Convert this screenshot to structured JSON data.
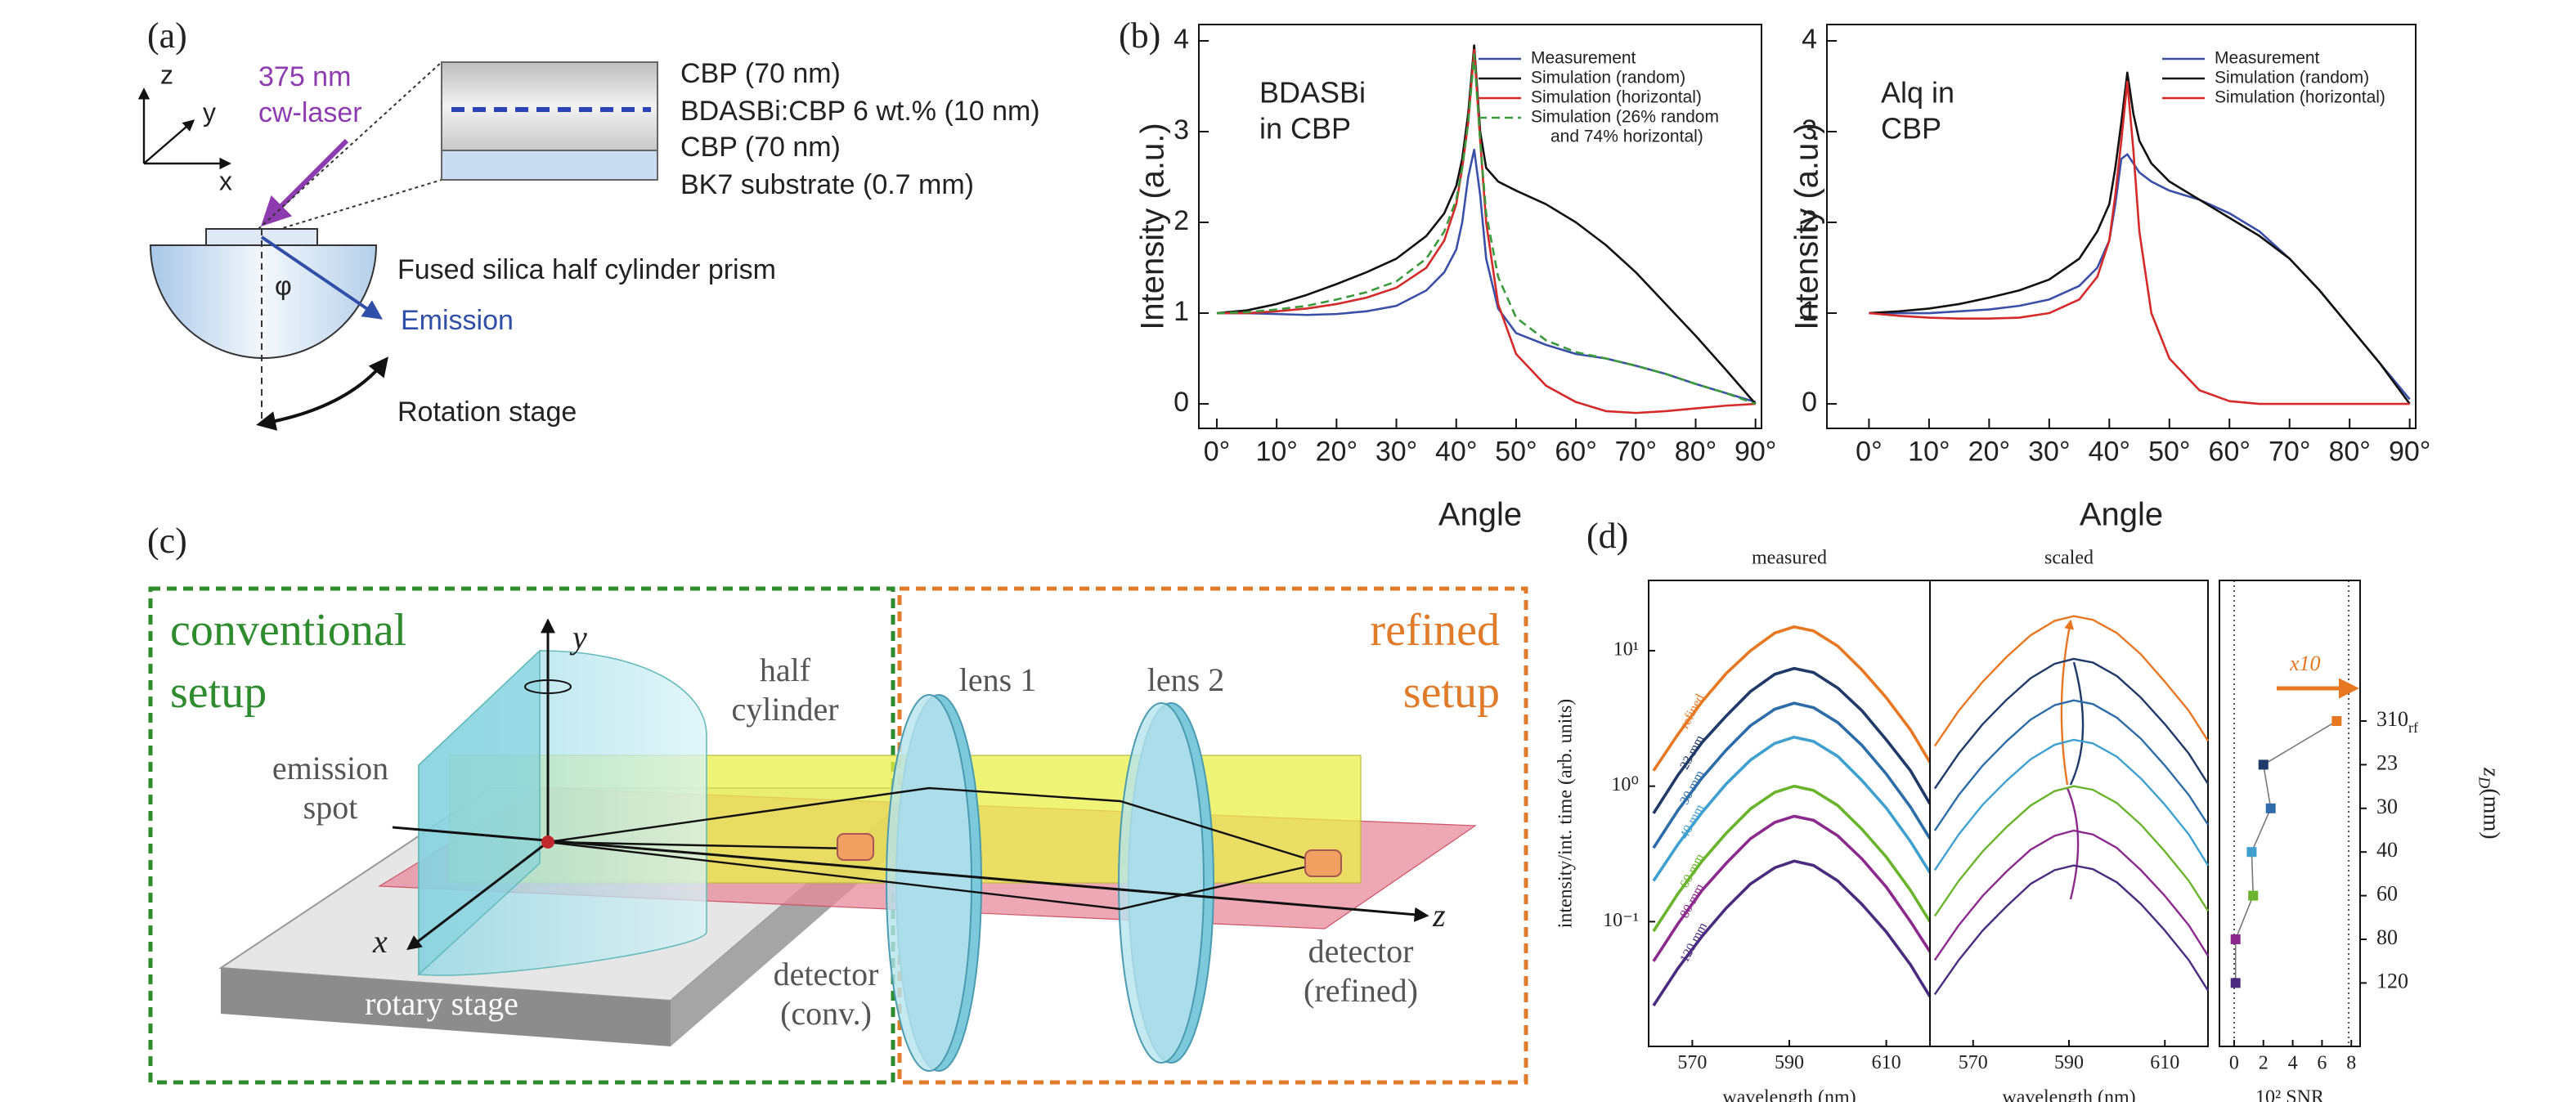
{
  "panel_labels": [
    "(a)",
    "(b)",
    "(c)",
    "(d)"
  ],
  "panel_a": {
    "axes": [
      "z",
      "y",
      "x"
    ],
    "laser": [
      "375 nm",
      "cw-laser"
    ],
    "layers": [
      "CBP (70 nm)",
      "BDASBi:CBP 6 wt.% (10 nm)",
      "CBP (70 nm)",
      "BK7 substrate (0.7 mm)"
    ],
    "prism": "Fused silica half cylinder prism",
    "angle": "φ",
    "emission": "Emission",
    "stage": "Rotation stage"
  },
  "panel_c": {
    "conventional": [
      "conventional",
      "setup"
    ],
    "refined": [
      "refined",
      "setup"
    ],
    "y_axis": "y",
    "x_axis": "x",
    "z_axis": "z",
    "half_cylinder": [
      "half",
      "cylinder"
    ],
    "lens_1": "lens 1",
    "lens_2": "lens 2",
    "emission_spot": [
      "emission",
      "spot"
    ],
    "rotary_stage": "rotary stage",
    "detector_conv": [
      "detector",
      "(conv.)"
    ],
    "detector_refined": [
      "detector",
      "(refined)"
    ]
  },
  "chart_data": [
    {
      "type": "line",
      "annotation": [
        "BDASBi",
        "in CBP"
      ],
      "xlabel": "Angle",
      "ylabel": "Intensity (a.u.)",
      "legend": "upper right",
      "x": [
        0,
        5,
        10,
        15,
        20,
        25,
        30,
        35,
        38,
        40,
        41,
        42,
        43,
        44,
        45,
        47,
        50,
        55,
        60,
        65,
        70,
        75,
        80,
        85,
        90
      ],
      "series": [
        {
          "name": "Measurement",
          "color": "#3a4fa8",
          "values": [
            1.0,
            1.0,
            0.99,
            0.98,
            0.99,
            1.02,
            1.08,
            1.25,
            1.45,
            1.7,
            2.0,
            2.5,
            2.8,
            2.3,
            1.6,
            1.05,
            0.78,
            0.65,
            0.55,
            0.5,
            0.42,
            0.33,
            0.22,
            0.12,
            0.02
          ]
        },
        {
          "name": "Simulation (random)",
          "color": "#111111",
          "values": [
            1.0,
            1.03,
            1.1,
            1.2,
            1.32,
            1.45,
            1.6,
            1.85,
            2.1,
            2.4,
            2.7,
            3.2,
            3.95,
            3.0,
            2.6,
            2.45,
            2.35,
            2.2,
            2.0,
            1.75,
            1.45,
            1.1,
            0.75,
            0.38,
            0.0
          ]
        },
        {
          "name": "Simulation (horizontal)",
          "color": "#d42a2a",
          "values": [
            1.0,
            1.0,
            1.02,
            1.05,
            1.1,
            1.17,
            1.28,
            1.5,
            1.8,
            2.2,
            2.6,
            3.1,
            3.9,
            2.9,
            2.0,
            1.1,
            0.55,
            0.2,
            0.02,
            -0.08,
            -0.1,
            -0.08,
            -0.05,
            -0.02,
            0.0
          ]
        },
        {
          "name": [
            "Simulation (26% random",
            "and 74% horizontal)"
          ],
          "color": "#3b9a3b",
          "dashed": true,
          "values": [
            1.0,
            1.01,
            1.04,
            1.08,
            1.15,
            1.23,
            1.35,
            1.6,
            1.9,
            2.25,
            2.6,
            3.1,
            3.85,
            2.9,
            2.1,
            1.4,
            0.95,
            0.7,
            0.57,
            0.5,
            0.42,
            0.33,
            0.22,
            0.12,
            0.0
          ]
        }
      ],
      "xlim": [
        -3,
        91
      ],
      "ylim": [
        -0.27,
        4.18
      ],
      "xticks": [
        {
          "value": 0,
          "label": "0°"
        },
        {
          "value": 10,
          "label": "10°"
        },
        {
          "value": 20,
          "label": "20°"
        },
        {
          "value": 30,
          "label": "30°"
        },
        {
          "value": 40,
          "label": "40°"
        },
        {
          "value": 50,
          "label": "50°"
        },
        {
          "value": 60,
          "label": "60°"
        },
        {
          "value": 70,
          "label": "70°"
        },
        {
          "value": 80,
          "label": "80°"
        },
        {
          "value": 90,
          "label": "90°"
        }
      ],
      "yticks": [
        0,
        1,
        2,
        3,
        4
      ]
    },
    {
      "type": "line",
      "annotation": [
        "Alq in",
        "CBP"
      ],
      "xlabel": "Angle",
      "ylabel": "Intensity (a.u.)",
      "legend": "upper right",
      "x": [
        0,
        5,
        10,
        15,
        20,
        25,
        30,
        35,
        38,
        40,
        41,
        42,
        43,
        44,
        45,
        47,
        50,
        55,
        60,
        65,
        70,
        75,
        80,
        85,
        90
      ],
      "series": [
        {
          "name": "Measurement",
          "color": "#3a4fa8",
          "values": [
            1.0,
            1.0,
            1.0,
            1.02,
            1.04,
            1.08,
            1.15,
            1.3,
            1.5,
            1.8,
            2.2,
            2.7,
            2.75,
            2.65,
            2.55,
            2.45,
            2.35,
            2.25,
            2.1,
            1.9,
            1.6,
            1.25,
            0.85,
            0.45,
            0.05
          ]
        },
        {
          "name": "Simulation (random)",
          "color": "#111111",
          "values": [
            1.0,
            1.02,
            1.05,
            1.1,
            1.17,
            1.25,
            1.37,
            1.6,
            1.9,
            2.2,
            2.6,
            3.1,
            3.65,
            3.2,
            2.9,
            2.65,
            2.45,
            2.25,
            2.05,
            1.85,
            1.6,
            1.25,
            0.85,
            0.45,
            0.0
          ]
        },
        {
          "name": "Simulation (horizontal)",
          "color": "#d42a2a",
          "values": [
            1.0,
            0.97,
            0.95,
            0.94,
            0.94,
            0.95,
            1.0,
            1.15,
            1.4,
            1.8,
            2.3,
            2.9,
            3.55,
            2.8,
            1.9,
            1.0,
            0.5,
            0.15,
            0.03,
            0.0,
            0.0,
            0.0,
            0.0,
            0.0,
            0.0
          ]
        }
      ],
      "xlim": [
        -7,
        91
      ],
      "ylim": [
        -0.27,
        4.18
      ],
      "xticks": [
        {
          "value": 0,
          "label": "0°"
        },
        {
          "value": 10,
          "label": "10°"
        },
        {
          "value": 20,
          "label": "20°"
        },
        {
          "value": 30,
          "label": "30°"
        },
        {
          "value": 40,
          "label": "40°"
        },
        {
          "value": 50,
          "label": "50°"
        },
        {
          "value": 60,
          "label": "60°"
        },
        {
          "value": 70,
          "label": "70°"
        },
        {
          "value": 80,
          "label": "80°"
        },
        {
          "value": 90,
          "label": "90°"
        }
      ],
      "yticks": [
        0,
        1,
        2,
        3,
        4
      ]
    },
    {
      "type": "line",
      "title": "measured",
      "xlabel": "wavelength (nm)",
      "ylabel": "intensity/int. time (arb. units)",
      "log": true,
      "legend": "inline",
      "x": [
        562,
        567,
        572,
        577,
        582,
        587,
        591,
        595,
        600,
        605,
        610,
        615,
        619
      ],
      "series": [
        {
          "name": "refined",
          "color": "#e87722",
          "values": [
            1.3,
            2.4,
            4.2,
            6.8,
            10,
            13.5,
            15,
            14,
            10.8,
            7.2,
            4.5,
            2.6,
            1.5
          ]
        },
        {
          "name": "23 mm",
          "color": "#1f3a68",
          "values": [
            0.63,
            1.2,
            2.1,
            3.3,
            5.0,
            6.7,
            7.4,
            6.9,
            5.3,
            3.6,
            2.2,
            1.3,
            0.74
          ]
        },
        {
          "name": "30 mm",
          "color": "#2c6ca8",
          "values": [
            0.35,
            0.66,
            1.15,
            1.85,
            2.8,
            3.7,
            4.1,
            3.8,
            2.95,
            2.0,
            1.23,
            0.7,
            0.41
          ]
        },
        {
          "name": "40 mm",
          "color": "#3fa0d0",
          "values": [
            0.2,
            0.37,
            0.64,
            1.04,
            1.56,
            2.07,
            2.3,
            2.14,
            1.66,
            1.1,
            0.69,
            0.39,
            0.23
          ]
        },
        {
          "name": "60 mm",
          "color": "#6ab42d",
          "values": [
            0.085,
            0.16,
            0.28,
            0.45,
            0.68,
            0.9,
            1.0,
            0.93,
            0.72,
            0.48,
            0.3,
            0.17,
            0.1
          ]
        },
        {
          "name": "80 mm",
          "color": "#8b2a8c",
          "values": [
            0.051,
            0.096,
            0.17,
            0.27,
            0.41,
            0.54,
            0.6,
            0.56,
            0.43,
            0.29,
            0.18,
            0.1,
            0.06
          ]
        },
        {
          "name": "120 mm",
          "color": "#4b2b7f",
          "values": [
            0.024,
            0.045,
            0.078,
            0.126,
            0.19,
            0.25,
            0.28,
            0.26,
            0.2,
            0.134,
            0.084,
            0.048,
            0.028
          ]
        }
      ],
      "xlim": [
        561,
        619
      ],
      "ylim": [
        0.012,
        33
      ],
      "xticks": [
        570,
        590,
        610
      ],
      "yticks": [
        {
          "value": 10,
          "label": "10¹"
        },
        {
          "value": 1,
          "label": "10⁰"
        },
        {
          "value": 0.1,
          "label": "10⁻¹"
        }
      ]
    },
    {
      "type": "line",
      "title": "scaled",
      "xlabel": "wavelength (nm)",
      "log": true,
      "x": [
        562,
        567,
        572,
        577,
        582,
        587,
        591,
        595,
        600,
        605,
        610,
        615,
        619
      ],
      "series": [
        {
          "color": "#e87722",
          "values": [
            1.98,
            3.6,
            5.9,
            9,
            13,
            16.6,
            18,
            16.9,
            13.5,
            9.4,
            5.9,
            3.6,
            2.16
          ]
        },
        {
          "color": "#1f3a68",
          "values": [
            0.96,
            1.74,
            2.87,
            4.35,
            6.26,
            8.0,
            8.7,
            8.18,
            6.5,
            4.5,
            2.87,
            1.74,
            1.04
          ]
        },
        {
          "color": "#2c6ca8",
          "values": [
            0.47,
            0.86,
            1.42,
            2.15,
            3.1,
            3.96,
            4.3,
            4.04,
            3.2,
            2.24,
            1.42,
            0.86,
            0.52
          ]
        },
        {
          "color": "#3fa0d0",
          "values": [
            0.24,
            0.44,
            0.73,
            1.1,
            1.58,
            2.02,
            2.2,
            2.07,
            1.65,
            1.14,
            0.73,
            0.44,
            0.26
          ]
        },
        {
          "color": "#6ab42d",
          "values": [
            0.11,
            0.2,
            0.33,
            0.5,
            0.72,
            0.92,
            1.0,
            0.94,
            0.75,
            0.52,
            0.33,
            0.2,
            0.12
          ]
        },
        {
          "color": "#8b2a8c",
          "values": [
            0.052,
            0.094,
            0.155,
            0.235,
            0.34,
            0.43,
            0.47,
            0.44,
            0.35,
            0.24,
            0.155,
            0.094,
            0.056
          ]
        },
        {
          "color": "#4b2b7f",
          "values": [
            0.029,
            0.052,
            0.086,
            0.13,
            0.19,
            0.24,
            0.26,
            0.244,
            0.195,
            0.135,
            0.086,
            0.052,
            0.031
          ]
        }
      ],
      "xlim": [
        561,
        619
      ],
      "ylim": [
        0.012,
        33
      ],
      "xticks": [
        570,
        590,
        610
      ]
    },
    {
      "type": "dot",
      "xlabel": "10² SNR",
      "ylabel": [
        "z",
        "D",
        " (mm)"
      ],
      "annotation": "x10",
      "categories": [
        "310",
        "23",
        "30",
        "40",
        "60",
        "80",
        "120"
      ],
      "category_subscript": "rf",
      "values": [
        7,
        2,
        2.5,
        1.2,
        1.3,
        0.1,
        0.1
      ],
      "colors": [
        "#e87722",
        "#1f3a68",
        "#2c6ca8",
        "#3fa0d0",
        "#6ab42d",
        "#8b2a8c",
        "#4b2b7f"
      ],
      "xlim": [
        -1,
        8.6
      ],
      "xticks": [
        0,
        2,
        4,
        6,
        8
      ]
    }
  ]
}
